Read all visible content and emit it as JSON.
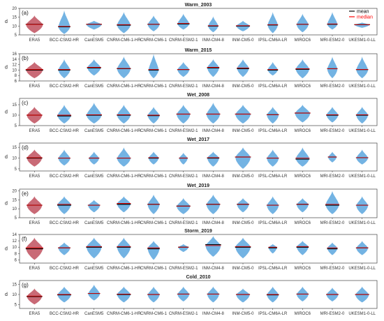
{
  "figure": {
    "legend": [
      {
        "label": "mean",
        "color": "#000000"
      },
      {
        "label": "median",
        "color": "#ff0000"
      }
    ],
    "colors": {
      "reanalysis": "#c0505e",
      "model": "#5aa6de",
      "mean": "#000000",
      "median": "#e00000"
    }
  },
  "chart_data": [
    {
      "type": "violin",
      "panel": "(a)",
      "title": "Warm_2003",
      "ylabel": "d",
      "ylim": [
        5,
        20
      ],
      "yticks": [
        5,
        10,
        15,
        20
      ],
      "categories": [
        "ERA5",
        "BCC-CSM2-HR",
        "CanESM5",
        "CNRM-CM6-1-HR",
        "CNRM-CM6-1",
        "CNRM-ESM2-1",
        "INM-CM4-8",
        "INM-CM5-0",
        "IPSL-CM6A-LR",
        "MIROC6",
        "MRI-ESM2-0",
        "UKESM1-0-LL"
      ],
      "means": [
        11,
        9.6,
        11,
        10.5,
        11,
        11.2,
        10,
        10,
        10.6,
        11,
        11,
        10.8
      ],
      "medians": [
        10.9,
        9.8,
        11,
        10.8,
        11,
        11.5,
        10.2,
        10.2,
        10.8,
        11,
        11.2,
        10.8
      ],
      "mins": [
        6,
        5.5,
        8,
        6,
        7,
        8,
        6.5,
        7,
        6,
        6.5,
        8,
        9
      ],
      "maxs": [
        16,
        19,
        13,
        18,
        16,
        17,
        15.5,
        13,
        18,
        17,
        18,
        12
      ],
      "widths": [
        1,
        0.7,
        0.9,
        0.8,
        0.7,
        0.7,
        0.6,
        0.8,
        0.6,
        0.7,
        0.6,
        0.9
      ]
    },
    {
      "type": "violin",
      "panel": "(b)",
      "title": "Warm_2015",
      "ylabel": "d",
      "ylim": [
        6,
        16
      ],
      "yticks": [
        6,
        8,
        10,
        12,
        14,
        16
      ],
      "categories": [
        "ERA5",
        "BCC-CSM2-HR",
        "CanESM5",
        "CNRM-CM6-1-HR",
        "CNRM-CM6-1",
        "CNRM-ESM2-1",
        "INM-CM4-8",
        "INM-CM5-0",
        "IPSL-CM6A-LR",
        "MIROC6",
        "MRI-ESM2-0",
        "UKESM1-0-LL"
      ],
      "means": [
        10,
        10,
        10.8,
        10.5,
        10,
        10.2,
        10.8,
        10.5,
        10,
        10.3,
        10.5,
        10.2
      ],
      "medians": [
        10.2,
        10.2,
        11,
        10.6,
        10.2,
        10.2,
        11,
        10.8,
        10.2,
        10.5,
        10.5,
        10.2
      ],
      "mins": [
        7,
        7,
        8,
        7,
        7,
        7.5,
        7.5,
        7.5,
        8,
        7,
        7,
        7
      ],
      "maxs": [
        13,
        14,
        14,
        15,
        16,
        13,
        14,
        14,
        13,
        14,
        15,
        15
      ],
      "widths": [
        1,
        0.7,
        0.8,
        0.8,
        0.6,
        0.7,
        0.7,
        0.7,
        0.6,
        0.8,
        0.6,
        0.7
      ]
    },
    {
      "type": "violin",
      "panel": "(c)",
      "title": "Wet_2008",
      "ylabel": "d",
      "ylim": [
        5,
        18
      ],
      "yticks": [
        5,
        10,
        15
      ],
      "categories": [
        "ERA5",
        "BCC-CSM2-HR",
        "CanESM5",
        "CNRM-CM6-1-HR",
        "CNRM-CM6-1",
        "CNRM-ESM2-1",
        "INM-CM4-8",
        "INM-CM5-0",
        "IPSL-CM6A-LR",
        "MIROC6",
        "MRI-ESM2-0",
        "UKESM1-0-LL"
      ],
      "means": [
        10,
        9.6,
        10,
        10,
        9.8,
        10.5,
        10.5,
        10.5,
        10.2,
        11,
        10,
        10
      ],
      "medians": [
        10,
        10,
        10.2,
        10.2,
        10,
        10.5,
        10.5,
        10.5,
        10.2,
        11,
        10.2,
        10.2
      ],
      "mins": [
        6,
        6,
        6,
        6,
        6,
        6,
        6,
        6,
        6,
        6.5,
        6.5,
        6
      ],
      "maxs": [
        14,
        15,
        16,
        15,
        14,
        15,
        16,
        15,
        14,
        15,
        14,
        14
      ],
      "widths": [
        0.9,
        0.8,
        0.9,
        0.8,
        0.7,
        0.8,
        0.8,
        0.9,
        0.7,
        0.9,
        0.7,
        0.7
      ]
    },
    {
      "type": "violin",
      "panel": "(d)",
      "title": "Wet_2017",
      "ylabel": "d",
      "ylim": [
        4,
        17
      ],
      "yticks": [
        5,
        10,
        15
      ],
      "categories": [
        "ERA5",
        "BCC-CSM2-HR",
        "CanESM5",
        "CNRM-CM6-1-HR",
        "CNRM-CM6-1",
        "CNRM-ESM2-1",
        "INM-CM4-8",
        "INM-CM5-0",
        "IPSL-CM6A-LR",
        "MIROC6",
        "MRI-ESM2-0",
        "UKESM1-0-LL"
      ],
      "means": [
        10,
        10,
        10,
        10,
        10,
        10,
        10,
        10.5,
        10,
        9.5,
        10.5,
        10.2
      ],
      "medians": [
        10.2,
        10,
        10,
        10,
        10.2,
        10,
        10.2,
        10.5,
        10,
        10,
        10.5,
        10.2
      ],
      "mins": [
        6,
        6.5,
        7,
        6,
        7,
        7,
        6,
        5,
        6,
        6,
        8,
        7
      ],
      "maxs": [
        14,
        14,
        13,
        15,
        13,
        12.5,
        13,
        15,
        14,
        15,
        13,
        14
      ],
      "widths": [
        0.9,
        0.7,
        0.6,
        0.8,
        0.6,
        0.5,
        0.7,
        0.9,
        0.7,
        0.8,
        0.5,
        0.7
      ]
    },
    {
      "type": "violin",
      "panel": "(e)",
      "title": "Wet_2019",
      "ylabel": "d",
      "ylim": [
        5,
        21
      ],
      "yticks": [
        5,
        10,
        15,
        20
      ],
      "categories": [
        "ERA5",
        "BCC-CSM2-HR",
        "CanESM5",
        "CNRM-CM6-1-HR",
        "CNRM-CM6-1",
        "CNRM-ESM2-1",
        "INM-CM4-8",
        "INM-CM5-0",
        "IPSL-CM6A-LR",
        "MIROC6",
        "MRI-ESM2-0",
        "UKESM1-0-LL"
      ],
      "means": [
        12,
        12,
        12,
        12.5,
        12.5,
        11.5,
        12.5,
        12.5,
        12,
        12.5,
        12,
        12
      ],
      "medians": [
        12,
        12.5,
        12,
        13,
        12.5,
        11.5,
        12.5,
        12.5,
        12,
        12.5,
        12.5,
        12
      ],
      "mins": [
        7,
        7,
        8,
        8,
        7,
        7,
        7,
        8,
        7,
        8,
        7,
        7
      ],
      "maxs": [
        17,
        17,
        15,
        17,
        18,
        16,
        18,
        16,
        17,
        16,
        20,
        17
      ],
      "widths": [
        0.9,
        0.8,
        0.7,
        0.8,
        0.7,
        0.8,
        0.8,
        0.7,
        0.7,
        0.7,
        0.8,
        0.7
      ]
    },
    {
      "type": "violin",
      "panel": "(f)",
      "title": "Storm_2019",
      "ylabel": "d",
      "ylim": [
        5,
        14
      ],
      "yticks": [
        6,
        8,
        10,
        12,
        14
      ],
      "categories": [
        "ERA5",
        "BCC-CSM2-HR",
        "CanESM5",
        "CNRM-CM6-1-HR",
        "CNRM-CM6-1",
        "CNRM-ESM2-1",
        "INM-CM4-8",
        "INM-CM5-0",
        "IPSL-CM6A-LR",
        "MIROC6",
        "MRI-ESM2-0",
        "UKESM1-0-LL"
      ],
      "means": [
        9.5,
        9.8,
        10,
        10,
        9.5,
        10,
        10.8,
        10,
        9.8,
        10,
        9.5,
        9.8
      ],
      "medians": [
        9.8,
        9.8,
        10.2,
        10.2,
        9.8,
        10,
        10.5,
        10.2,
        10,
        10.2,
        9.8,
        9.8
      ],
      "mins": [
        6,
        7.5,
        6.5,
        6.5,
        6,
        8.5,
        7,
        6.5,
        8,
        7.5,
        7.5,
        7.5
      ],
      "maxs": [
        13,
        11.5,
        13,
        13,
        12,
        11,
        13.5,
        13,
        11,
        12,
        11.5,
        12
      ],
      "widths": [
        1,
        0.7,
        0.9,
        0.8,
        0.7,
        0.6,
        0.9,
        0.9,
        0.5,
        0.7,
        0.6,
        0.7
      ]
    },
    {
      "type": "violin",
      "panel": "(g)",
      "title": "Cold_2010",
      "ylabel": "d",
      "ylim": [
        3,
        17
      ],
      "yticks": [
        5,
        10,
        15
      ],
      "categories": [
        "ERA5",
        "BCC-CSM2-HR",
        "CanESM5",
        "CNRM-CM6-1-HR",
        "CNRM-CM6-1",
        "CNRM-ESM2-1",
        "INM-CM4-8",
        "INM-CM5-0",
        "IPSL-CM6A-LR",
        "MIROC6",
        "MRI-ESM2-0",
        "UKESM1-0-LL"
      ],
      "means": [
        9,
        9.8,
        10.5,
        10,
        10,
        10.2,
        10.2,
        10,
        9.8,
        10.2,
        10,
        10
      ],
      "medians": [
        9.2,
        10,
        10.5,
        10.2,
        10,
        10.2,
        10.2,
        10,
        10,
        10.2,
        10,
        10
      ],
      "mins": [
        5,
        6,
        7,
        6,
        6,
        6.5,
        6,
        6,
        6,
        6.5,
        6.5,
        6
      ],
      "maxs": [
        13,
        14,
        15,
        14,
        14,
        14,
        14,
        13,
        14,
        14,
        13.5,
        14
      ],
      "widths": [
        0.9,
        0.8,
        0.7,
        0.8,
        0.7,
        0.7,
        0.7,
        0.8,
        0.7,
        0.7,
        0.7,
        0.8
      ]
    }
  ]
}
